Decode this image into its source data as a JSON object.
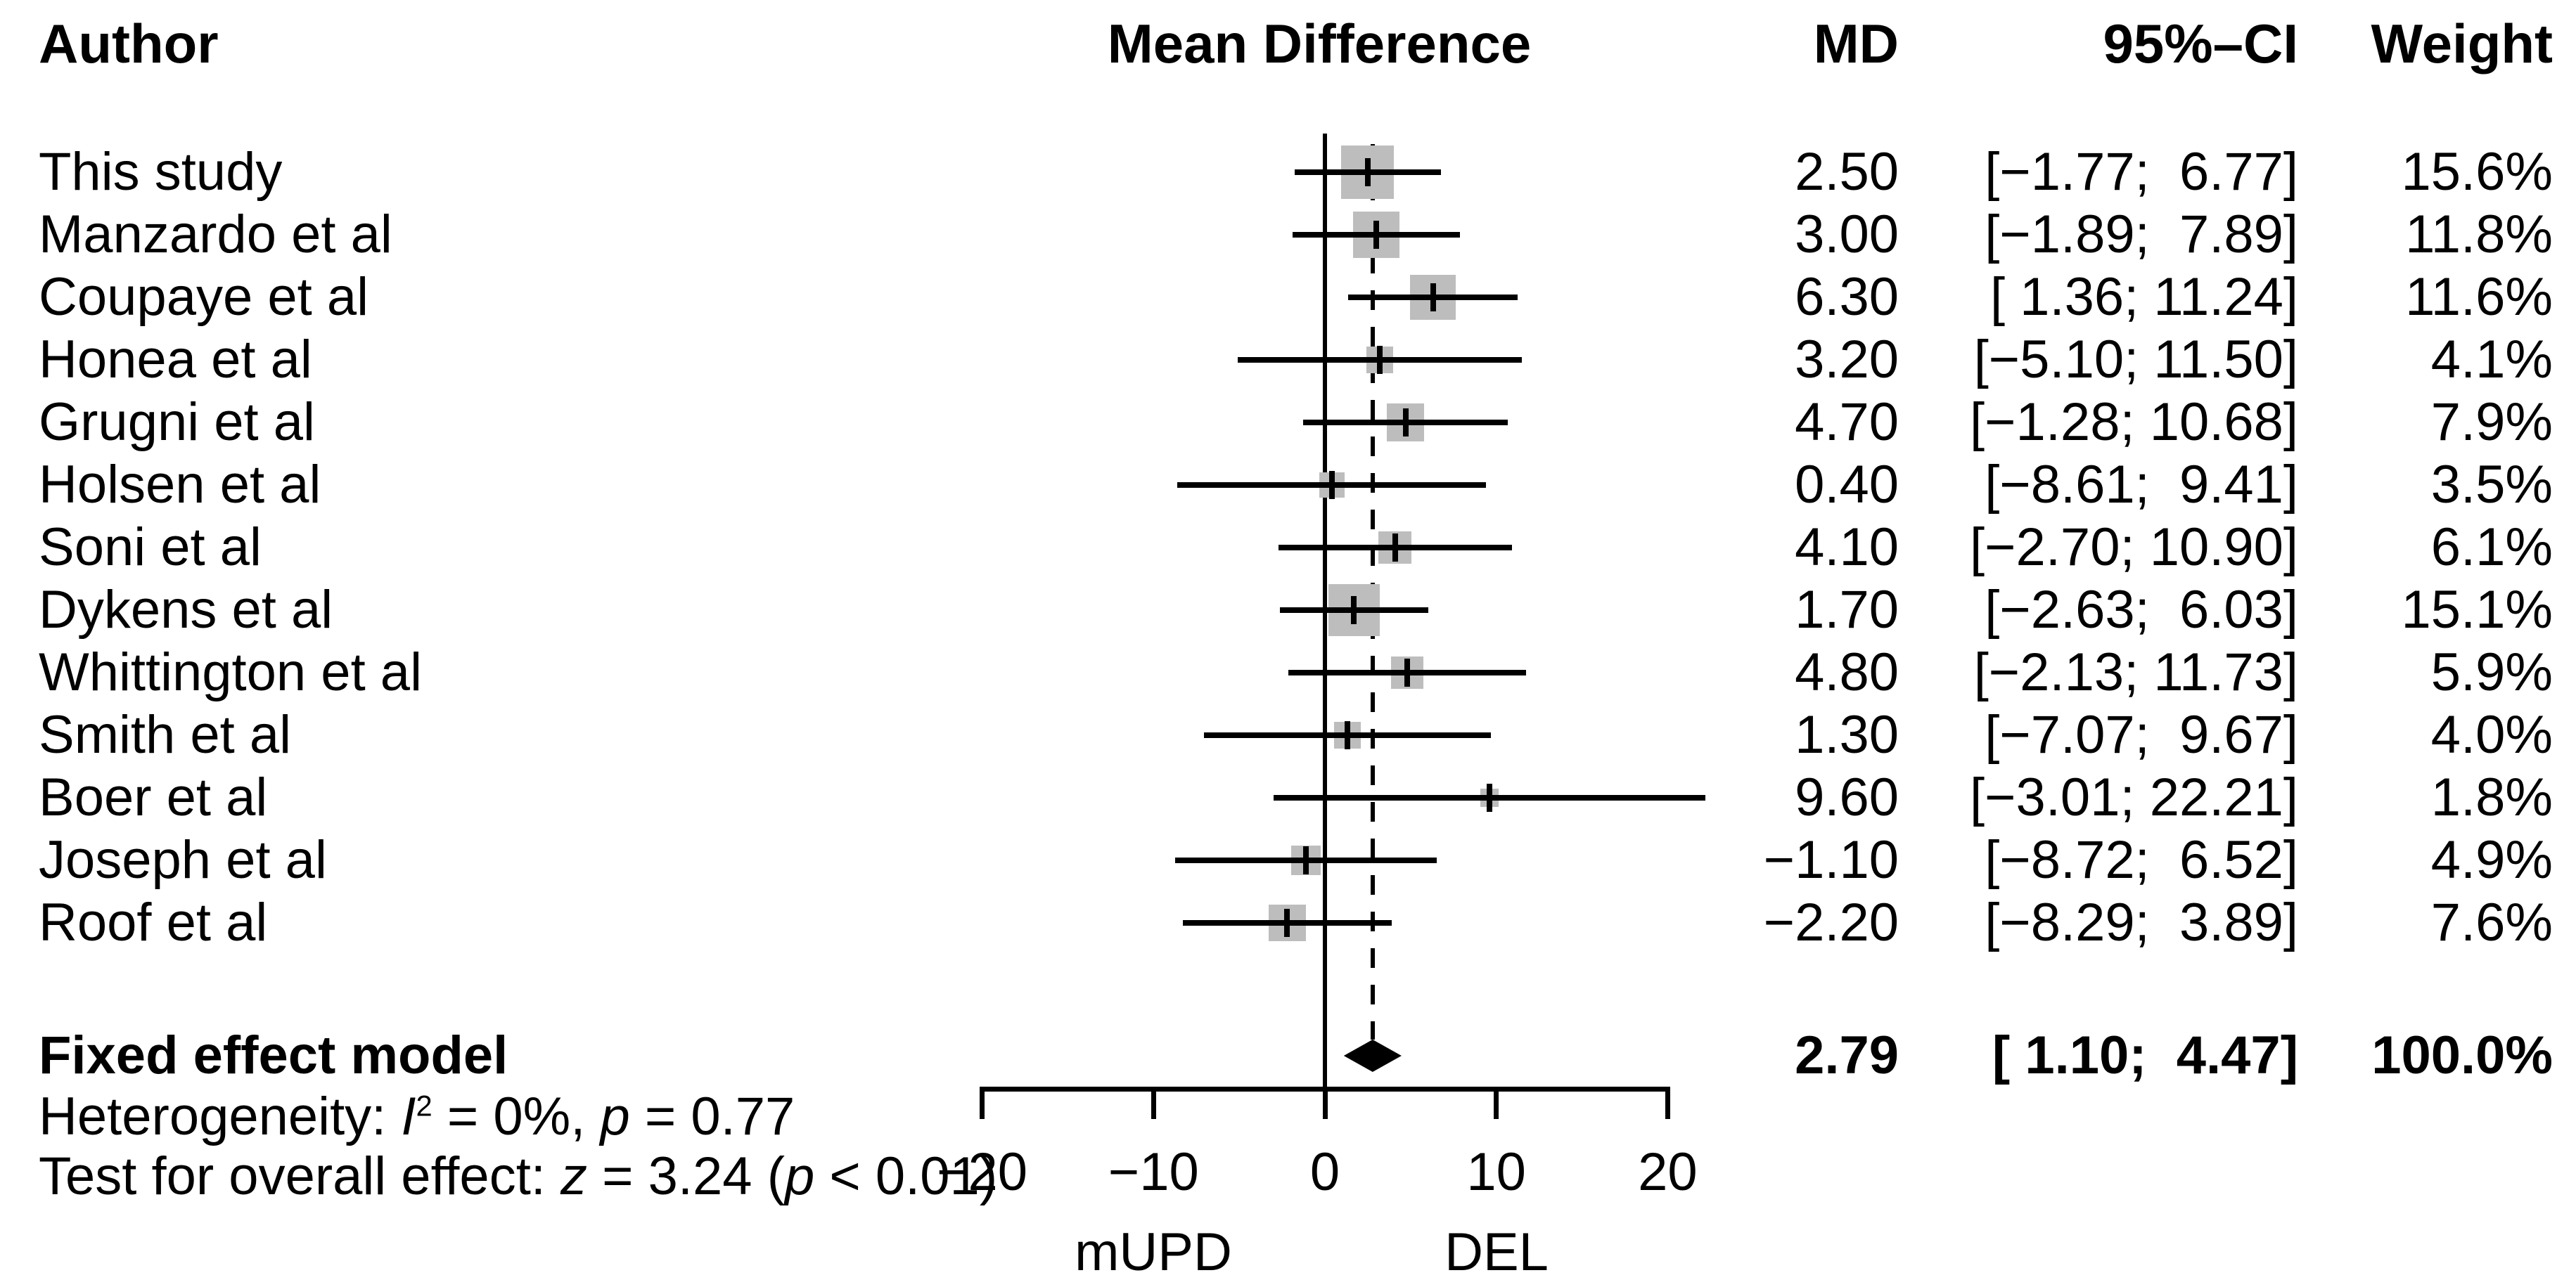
{
  "figure": {
    "header": {
      "author": "Author",
      "plot": "Mean Difference",
      "md": "MD",
      "ci": "95%–CI",
      "weight": "Weight"
    },
    "summary_row": {
      "label": "Fixed effect model",
      "md_label": "2.79",
      "ci_label": "[ 1.10;  4.47]",
      "weight_label": "100.0%"
    },
    "heterogeneity": {
      "prefix": "Heterogeneity: ",
      "i_sym": "I",
      "i_sup": "2",
      "mid": " = 0%, ",
      "p_sym": "p",
      "tail": " = 0.77"
    },
    "overall_test": {
      "prefix": "Test for overall effect: ",
      "z_sym": "z",
      "mid": " = 3.24 (",
      "p_sym": "p",
      "tail": " < 0.01)"
    },
    "axis": {
      "tick_labels": [
        "−20",
        "−10",
        "0",
        "10",
        "20"
      ],
      "left_group_label": "mUPD",
      "right_group_label": "DEL"
    }
  },
  "colors": {
    "background": "#ffffff",
    "text": "#000000",
    "line": "#000000",
    "square": "#bdbdbd",
    "diamond": "#000000"
  },
  "chart_data": {
    "type": "forest",
    "effect_measure": "Mean Difference",
    "x_axis": {
      "range": [
        -20,
        20
      ],
      "ticks": [
        -20,
        -10,
        0,
        10,
        20
      ],
      "reference_line": 0,
      "pooled_effect_line": 2.79,
      "left_label": "mUPD",
      "right_label": "DEL",
      "grid": false
    },
    "studies": [
      {
        "author": "This study",
        "md": 2.5,
        "ci_lower": -1.77,
        "ci_upper": 6.77,
        "weight_pct": 15.6,
        "md_label": "2.50",
        "ci_label": "[−1.77;  6.77]",
        "weight_label": "15.6%"
      },
      {
        "author": "Manzardo et al",
        "md": 3.0,
        "ci_lower": -1.89,
        "ci_upper": 7.89,
        "weight_pct": 11.8,
        "md_label": "3.00",
        "ci_label": "[−1.89;  7.89]",
        "weight_label": "11.8%"
      },
      {
        "author": "Coupaye et al",
        "md": 6.3,
        "ci_lower": 1.36,
        "ci_upper": 11.24,
        "weight_pct": 11.6,
        "md_label": "6.30",
        "ci_label": "[ 1.36; 11.24]",
        "weight_label": "11.6%"
      },
      {
        "author": "Honea et al",
        "md": 3.2,
        "ci_lower": -5.1,
        "ci_upper": 11.5,
        "weight_pct": 4.1,
        "md_label": "3.20",
        "ci_label": "[−5.10; 11.50]",
        "weight_label": "4.1%"
      },
      {
        "author": "Grugni et al",
        "md": 4.7,
        "ci_lower": -1.28,
        "ci_upper": 10.68,
        "weight_pct": 7.9,
        "md_label": "4.70",
        "ci_label": "[−1.28; 10.68]",
        "weight_label": "7.9%"
      },
      {
        "author": "Holsen et al",
        "md": 0.4,
        "ci_lower": -8.61,
        "ci_upper": 9.41,
        "weight_pct": 3.5,
        "md_label": "0.40",
        "ci_label": "[−8.61;  9.41]",
        "weight_label": "3.5%"
      },
      {
        "author": "Soni et al",
        "md": 4.1,
        "ci_lower": -2.7,
        "ci_upper": 10.9,
        "weight_pct": 6.1,
        "md_label": "4.10",
        "ci_label": "[−2.70; 10.90]",
        "weight_label": "6.1%"
      },
      {
        "author": "Dykens et al",
        "md": 1.7,
        "ci_lower": -2.63,
        "ci_upper": 6.03,
        "weight_pct": 15.1,
        "md_label": "1.70",
        "ci_label": "[−2.63;  6.03]",
        "weight_label": "15.1%"
      },
      {
        "author": "Whittington et al",
        "md": 4.8,
        "ci_lower": -2.13,
        "ci_upper": 11.73,
        "weight_pct": 5.9,
        "md_label": "4.80",
        "ci_label": "[−2.13; 11.73]",
        "weight_label": "5.9%"
      },
      {
        "author": "Smith et al",
        "md": 1.3,
        "ci_lower": -7.07,
        "ci_upper": 9.67,
        "weight_pct": 4.0,
        "md_label": "1.30",
        "ci_label": "[−7.07;  9.67]",
        "weight_label": "4.0%"
      },
      {
        "author": "Boer et al",
        "md": 9.6,
        "ci_lower": -3.01,
        "ci_upper": 22.21,
        "weight_pct": 1.8,
        "md_label": "9.60",
        "ci_label": "[−3.01; 22.21]",
        "weight_label": "1.8%"
      },
      {
        "author": "Joseph et al",
        "md": -1.1,
        "ci_lower": -8.72,
        "ci_upper": 6.52,
        "weight_pct": 4.9,
        "md_label": "−1.10",
        "ci_label": "[−8.72;  6.52]",
        "weight_label": "4.9%"
      },
      {
        "author": "Roof et al",
        "md": -2.2,
        "ci_lower": -8.29,
        "ci_upper": 3.89,
        "weight_pct": 7.6,
        "md_label": "−2.20",
        "ci_label": "[−8.29;  3.89]",
        "weight_label": "7.6%"
      }
    ],
    "summary": {
      "label": "Fixed effect model",
      "md": 2.79,
      "ci_lower": 1.1,
      "ci_upper": 4.47,
      "weight_pct": 100.0
    },
    "heterogeneity": {
      "I2": "0%",
      "p": "0.77"
    },
    "overall_effect_test": {
      "z": "3.24",
      "p": "< 0.01"
    }
  }
}
